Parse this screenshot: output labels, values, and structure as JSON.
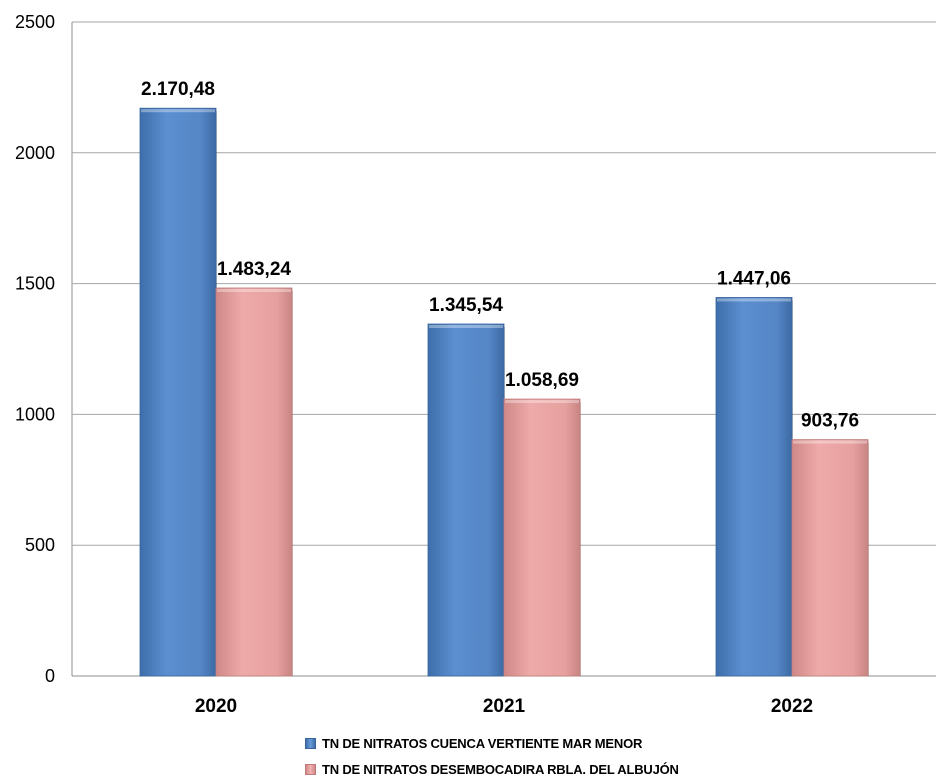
{
  "chart_data": {
    "type": "bar",
    "categories": [
      "2020",
      "2021",
      "2022"
    ],
    "series": [
      {
        "name": "TN  DE NITRATOS CUENCA VERTIENTE MAR MENOR",
        "values": [
          2170.48,
          1345.54,
          1447.06
        ],
        "labels": [
          "2.170,48",
          "1.345,54",
          "1.447,06"
        ],
        "color": "#5586c6"
      },
      {
        "name": "TN  DE NITRATOS DESEMBOCADIRA RBLA. DEL ALBUJÓN",
        "values": [
          1483.24,
          1058.69,
          903.76
        ],
        "labels": [
          "1.483,24",
          "1.058,69",
          "903,76"
        ],
        "color": "#e6a09f"
      }
    ],
    "yticks": [
      0,
      500,
      1000,
      1500,
      2000,
      2500
    ],
    "ylim": [
      0,
      2500
    ],
    "grid": true,
    "legend_position": "bottom",
    "title": "",
    "xlabel": "",
    "ylabel": ""
  }
}
